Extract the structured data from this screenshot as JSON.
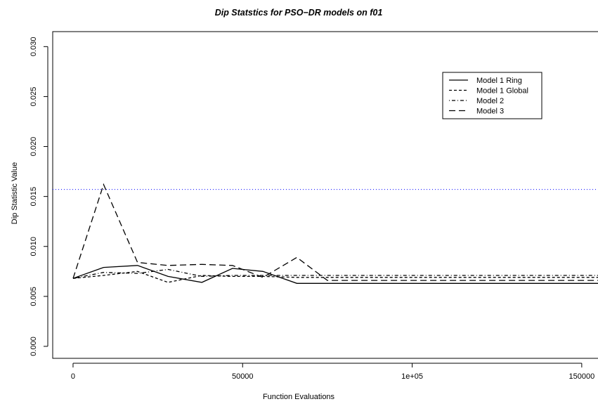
{
  "chart_data": {
    "type": "line",
    "title": "Dip Statstics for PSO−DR models on f01",
    "xlabel": "Function Evaluations",
    "ylabel": "Dip Statistic Value",
    "xlim": [
      -6000,
      155000
    ],
    "ylim": [
      -0.0012,
      0.0315
    ],
    "x_ticks": [
      0,
      50000,
      100000,
      150000
    ],
    "x_tick_labels": [
      "0",
      "50000",
      "1e+05",
      "150000"
    ],
    "y_ticks": [
      0.0,
      0.005,
      0.01,
      0.015,
      0.02,
      0.025,
      0.03
    ],
    "y_tick_labels": [
      "0.000",
      "0.005",
      "0.010",
      "0.015",
      "0.020",
      "0.025",
      "0.030"
    ],
    "legend_position": "top-right",
    "reference_line": {
      "y": 0.0157,
      "color": "#0000ff",
      "style": "dotted"
    },
    "series": [
      {
        "name": "Model 1 Ring",
        "dash": "solid",
        "color": "#000000",
        "x": [
          0,
          9000,
          19000,
          28000,
          38000,
          47000,
          56000,
          66000,
          75000,
          85000,
          94000,
          103000,
          113000,
          122000,
          131000,
          141000,
          150000,
          155000
        ],
        "y": [
          0.0068,
          0.0079,
          0.0081,
          0.007,
          0.0064,
          0.0078,
          0.0075,
          0.0063,
          0.0063,
          0.0063,
          0.0063,
          0.0063,
          0.0063,
          0.0063,
          0.0063,
          0.0063,
          0.0063,
          0.0063
        ]
      },
      {
        "name": "Model 1 Global",
        "dash": "short-dash",
        "color": "#000000",
        "x": [
          0,
          9000,
          19000,
          28000,
          38000,
          47000,
          56000,
          66000,
          75000,
          85000,
          94000,
          103000,
          113000,
          122000,
          131000,
          141000,
          150000,
          155000
        ],
        "y": [
          0.0068,
          0.0071,
          0.0075,
          0.0064,
          0.0071,
          0.007,
          0.007,
          0.0069,
          0.0069,
          0.0069,
          0.0069,
          0.0069,
          0.0069,
          0.0069,
          0.0069,
          0.0069,
          0.0069,
          0.0069
        ]
      },
      {
        "name": "Model 2",
        "dash": "dot-dash",
        "color": "#000000",
        "x": [
          0,
          9000,
          19000,
          28000,
          38000,
          47000,
          56000,
          66000,
          75000,
          85000,
          94000,
          103000,
          113000,
          122000,
          131000,
          141000,
          150000,
          155000
        ],
        "y": [
          0.0068,
          0.0074,
          0.0073,
          0.0077,
          0.007,
          0.0071,
          0.0071,
          0.0071,
          0.0071,
          0.0071,
          0.0071,
          0.0071,
          0.0071,
          0.0071,
          0.0071,
          0.0071,
          0.0071,
          0.0071
        ]
      },
      {
        "name": "Model 3",
        "dash": "long-dash",
        "color": "#000000",
        "x": [
          0,
          9000,
          19000,
          28000,
          38000,
          47000,
          56000,
          66000,
          75000,
          85000,
          94000,
          103000,
          113000,
          122000,
          131000,
          141000,
          150000,
          155000
        ],
        "y": [
          0.0068,
          0.0162,
          0.0084,
          0.0081,
          0.0082,
          0.0081,
          0.0069,
          0.0089,
          0.0066,
          0.0066,
          0.0066,
          0.0066,
          0.0066,
          0.0066,
          0.0066,
          0.0066,
          0.0066,
          0.0066
        ]
      }
    ]
  }
}
